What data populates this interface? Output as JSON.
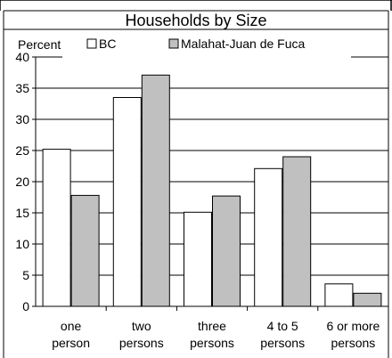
{
  "chart_data": {
    "type": "bar",
    "title": "Households by Size",
    "ylabel": "Percent",
    "xlabel": "",
    "ylim": [
      0,
      40
    ],
    "yticks": [
      0,
      5,
      10,
      15,
      20,
      25,
      30,
      35,
      40
    ],
    "grid": true,
    "legend_position": "top",
    "categories": [
      [
        "one",
        "person"
      ],
      [
        "two",
        "persons"
      ],
      [
        "three",
        "persons"
      ],
      [
        "4 to 5",
        "persons"
      ],
      [
        "6 or more",
        "persons"
      ]
    ],
    "series": [
      {
        "name": "BC",
        "values": [
          25.2,
          33.5,
          15.1,
          22.1,
          3.6
        ],
        "color": "#ffffff"
      },
      {
        "name": "Malahat-Juan de Fuca",
        "values": [
          17.8,
          37.1,
          17.7,
          24.0,
          2.1
        ],
        "color": "#c0c0c0"
      }
    ]
  }
}
